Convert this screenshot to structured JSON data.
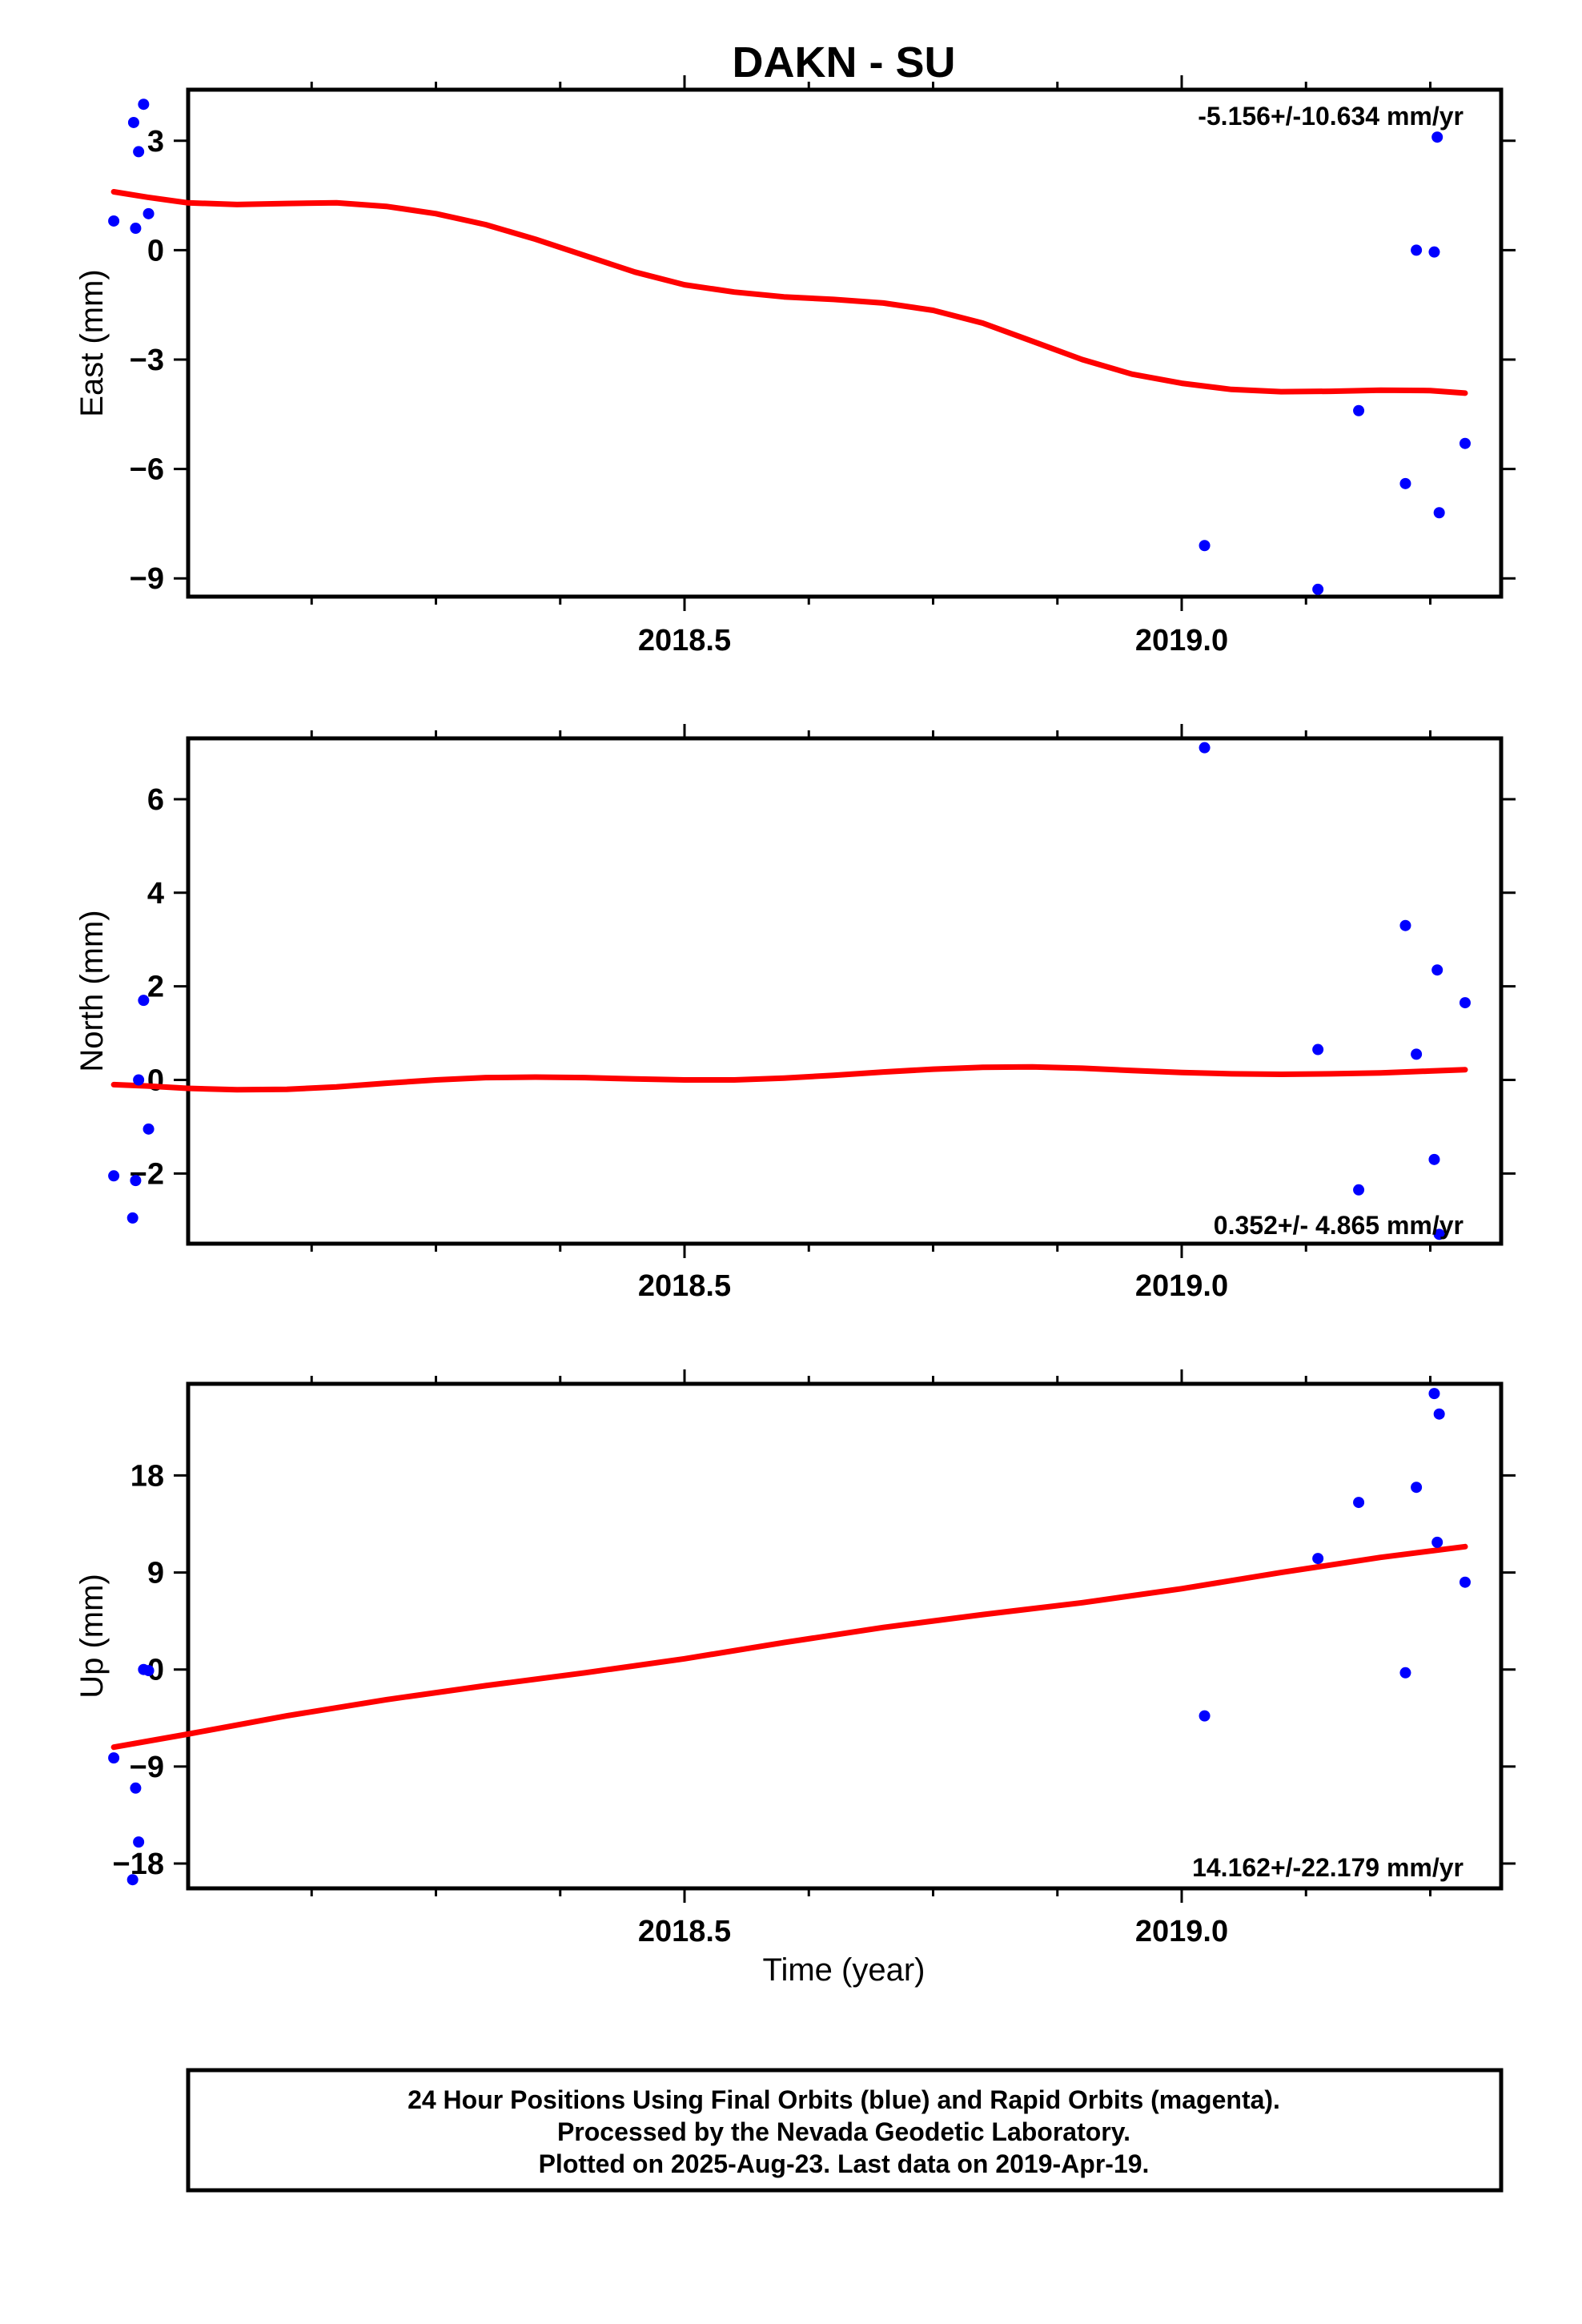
{
  "title": "DAKN - SU",
  "colors": {
    "final_orbits": "#0000ff",
    "fit_line": "#ff0000",
    "frame": "#000000"
  },
  "xlabel": "Time (year)",
  "footer": {
    "line1": "24 Hour Positions Using Final Orbits (blue) and Rapid Orbits (magenta).",
    "line2": "Processed by the Nevada Geodetic Laboratory.",
    "line3": "Plotted on 2025-Aug-23. Last data on 2019-Apr-19."
  },
  "chart_data": [
    {
      "type": "scatter",
      "panel": "east",
      "ylabel": "East (mm)",
      "xlim": [
        2017.9,
        2019.22
      ],
      "ylim": [
        -9.5,
        4.4
      ],
      "xticks": [
        2018.5,
        2019.0
      ],
      "xtick_labels": [
        "2018.5",
        "2019.0"
      ],
      "yticks": [
        3,
        0,
        -3,
        -6,
        -9
      ],
      "ytick_labels": [
        "3",
        "0",
        "−3",
        "−6",
        "−9"
      ],
      "rate_label": "-5.156+/-10.634 mm/yr",
      "series": [
        {
          "points": [
            [
              2017.926,
              0.8
            ],
            [
              2017.946,
              3.5
            ],
            [
              2017.948,
              0.6
            ],
            [
              2017.951,
              2.7
            ],
            [
              2017.956,
              4.0
            ],
            [
              2017.961,
              1.0
            ],
            [
              2019.023,
              -8.1
            ],
            [
              2019.137,
              -9.3
            ],
            [
              2019.178,
              -4.4
            ],
            [
              2019.225,
              -6.4
            ],
            [
              2019.236,
              0.0
            ],
            [
              2019.254,
              -0.05
            ],
            [
              2019.257,
              3.1
            ],
            [
              2019.259,
              -7.2
            ],
            [
              2019.285,
              -5.3
            ]
          ]
        },
        {
          "line": [
            [
              2017.926,
              1.6
            ],
            [
              2017.96,
              1.45
            ],
            [
              2018.0,
              1.3
            ],
            [
              2018.05,
              1.25
            ],
            [
              2018.1,
              1.28
            ],
            [
              2018.15,
              1.3
            ],
            [
              2018.2,
              1.2
            ],
            [
              2018.25,
              1.0
            ],
            [
              2018.3,
              0.7
            ],
            [
              2018.35,
              0.3
            ],
            [
              2018.4,
              -0.15
            ],
            [
              2018.45,
              -0.6
            ],
            [
              2018.5,
              -0.95
            ],
            [
              2018.55,
              -1.15
            ],
            [
              2018.6,
              -1.28
            ],
            [
              2018.65,
              -1.35
            ],
            [
              2018.7,
              -1.45
            ],
            [
              2018.75,
              -1.65
            ],
            [
              2018.8,
              -2.0
            ],
            [
              2018.85,
              -2.5
            ],
            [
              2018.9,
              -3.0
            ],
            [
              2018.95,
              -3.4
            ],
            [
              2019.0,
              -3.65
            ],
            [
              2019.05,
              -3.82
            ],
            [
              2019.1,
              -3.88
            ],
            [
              2019.15,
              -3.87
            ],
            [
              2019.2,
              -3.84
            ],
            [
              2019.25,
              -3.85
            ],
            [
              2019.285,
              -3.92
            ]
          ]
        }
      ]
    },
    {
      "type": "scatter",
      "panel": "north",
      "ylabel": "North (mm)",
      "xlim": [
        2017.9,
        2019.22
      ],
      "ylim": [
        -3.5,
        7.3
      ],
      "xticks": [
        2018.5,
        2019.0
      ],
      "xtick_labels": [
        "2018.5",
        "2019.0"
      ],
      "yticks": [
        6,
        4,
        2,
        0,
        -2
      ],
      "ytick_labels": [
        "6",
        "4",
        "2",
        "0",
        "−2"
      ],
      "rate_label": "0.352+/- 4.865 mm/yr",
      "series": [
        {
          "points": [
            [
              2017.926,
              -2.05
            ],
            [
              2017.945,
              -2.95
            ],
            [
              2017.948,
              -2.15
            ],
            [
              2017.951,
              0.0
            ],
            [
              2017.956,
              1.7
            ],
            [
              2017.961,
              -1.05
            ],
            [
              2019.023,
              7.1
            ],
            [
              2019.137,
              0.65
            ],
            [
              2019.178,
              -2.35
            ],
            [
              2019.225,
              3.3
            ],
            [
              2019.236,
              0.55
            ],
            [
              2019.254,
              -1.7
            ],
            [
              2019.257,
              2.35
            ],
            [
              2019.259,
              -3.3
            ],
            [
              2019.285,
              1.65
            ]
          ]
        },
        {
          "line": [
            [
              2017.926,
              -0.1
            ],
            [
              2017.96,
              -0.13
            ],
            [
              2018.0,
              -0.18
            ],
            [
              2018.05,
              -0.21
            ],
            [
              2018.1,
              -0.2
            ],
            [
              2018.15,
              -0.15
            ],
            [
              2018.2,
              -0.07
            ],
            [
              2018.25,
              0.0
            ],
            [
              2018.3,
              0.05
            ],
            [
              2018.35,
              0.06
            ],
            [
              2018.4,
              0.05
            ],
            [
              2018.45,
              0.02
            ],
            [
              2018.5,
              0.0
            ],
            [
              2018.55,
              0.0
            ],
            [
              2018.6,
              0.04
            ],
            [
              2018.65,
              0.1
            ],
            [
              2018.7,
              0.17
            ],
            [
              2018.75,
              0.23
            ],
            [
              2018.8,
              0.27
            ],
            [
              2018.85,
              0.28
            ],
            [
              2018.9,
              0.25
            ],
            [
              2018.95,
              0.2
            ],
            [
              2019.0,
              0.16
            ],
            [
              2019.05,
              0.13
            ],
            [
              2019.1,
              0.12
            ],
            [
              2019.15,
              0.13
            ],
            [
              2019.2,
              0.15
            ],
            [
              2019.25,
              0.19
            ],
            [
              2019.285,
              0.22
            ]
          ]
        }
      ]
    },
    {
      "type": "scatter",
      "panel": "up",
      "ylabel": "Up (mm)",
      "xlabel": "Time (year)",
      "xlim": [
        2017.9,
        2019.22
      ],
      "ylim": [
        -20.3,
        26.5
      ],
      "xticks": [
        2018.5,
        2019.0
      ],
      "xtick_labels": [
        "2018.5",
        "2019.0"
      ],
      "yticks": [
        18,
        9,
        0,
        -9,
        -18
      ],
      "ytick_labels": [
        "18",
        "9",
        "0",
        "−9",
        "−18"
      ],
      "rate_label": "14.162+/-22.179 mm/yr",
      "series": [
        {
          "points": [
            [
              2017.926,
              -8.2
            ],
            [
              2017.945,
              -19.5
            ],
            [
              2017.948,
              -11.0
            ],
            [
              2017.951,
              -16.0
            ],
            [
              2017.956,
              0.0
            ],
            [
              2017.961,
              -0.1
            ],
            [
              2019.023,
              -4.3
            ],
            [
              2019.137,
              10.3
            ],
            [
              2019.178,
              15.5
            ],
            [
              2019.225,
              -0.3
            ],
            [
              2019.236,
              16.9
            ],
            [
              2019.254,
              25.6
            ],
            [
              2019.257,
              11.8
            ],
            [
              2019.259,
              23.7
            ],
            [
              2019.285,
              8.1
            ]
          ]
        },
        {
          "line": [
            [
              2017.926,
              -7.2
            ],
            [
              2018.0,
              -6.0
            ],
            [
              2018.1,
              -4.3
            ],
            [
              2018.2,
              -2.8
            ],
            [
              2018.3,
              -1.5
            ],
            [
              2018.4,
              -0.3
            ],
            [
              2018.5,
              1.0
            ],
            [
              2018.6,
              2.5
            ],
            [
              2018.7,
              3.9
            ],
            [
              2018.8,
              5.1
            ],
            [
              2018.9,
              6.2
            ],
            [
              2019.0,
              7.5
            ],
            [
              2019.1,
              9.0
            ],
            [
              2019.2,
              10.4
            ],
            [
              2019.285,
              11.4
            ]
          ]
        }
      ]
    }
  ]
}
